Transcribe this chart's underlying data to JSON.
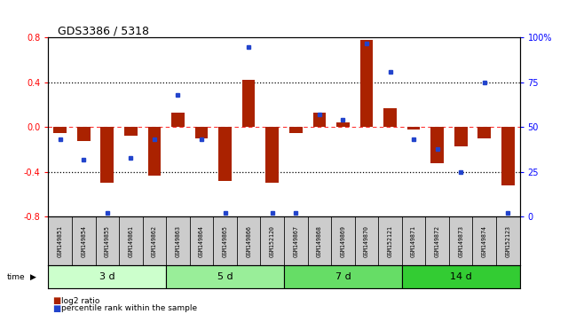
{
  "title": "GDS3386 / 5318",
  "samples": [
    "GSM149851",
    "GSM149854",
    "GSM149855",
    "GSM149861",
    "GSM149862",
    "GSM149863",
    "GSM149864",
    "GSM149865",
    "GSM149866",
    "GSM152120",
    "GSM149867",
    "GSM149868",
    "GSM149869",
    "GSM149870",
    "GSM152121",
    "GSM149871",
    "GSM149872",
    "GSM149873",
    "GSM149874",
    "GSM152123"
  ],
  "log2_ratio": [
    -0.05,
    -0.12,
    -0.5,
    -0.08,
    -0.43,
    0.13,
    -0.1,
    -0.48,
    0.42,
    -0.5,
    -0.05,
    0.13,
    0.04,
    0.78,
    0.17,
    -0.02,
    -0.32,
    -0.17,
    -0.1,
    -0.52
  ],
  "percentile": [
    43,
    32,
    2,
    33,
    43,
    68,
    43,
    2,
    95,
    2,
    2,
    57,
    54,
    97,
    81,
    43,
    38,
    25,
    75,
    2
  ],
  "groups": [
    {
      "label": "3 d",
      "start": 0,
      "end": 5,
      "color": "#ccffcc"
    },
    {
      "label": "5 d",
      "start": 5,
      "end": 10,
      "color": "#99ee99"
    },
    {
      "label": "7 d",
      "start": 10,
      "end": 15,
      "color": "#66dd66"
    },
    {
      "label": "14 d",
      "start": 15,
      "end": 20,
      "color": "#33cc33"
    }
  ],
  "bar_color": "#aa2200",
  "dot_color": "#2244cc",
  "ylim_left": [
    -0.8,
    0.8
  ],
  "ylim_right": [
    0,
    100
  ],
  "yticks_left": [
    -0.8,
    -0.4,
    0.0,
    0.4,
    0.8
  ],
  "yticks_right": [
    0,
    25,
    50,
    75,
    100
  ],
  "ytick_labels_right": [
    "0",
    "25",
    "50",
    "75",
    "100%"
  ],
  "hlines_dotted": [
    0.4,
    -0.4
  ],
  "hline_dashed": 0.0,
  "background_color": "#ffffff",
  "label_bg": "#cccccc"
}
